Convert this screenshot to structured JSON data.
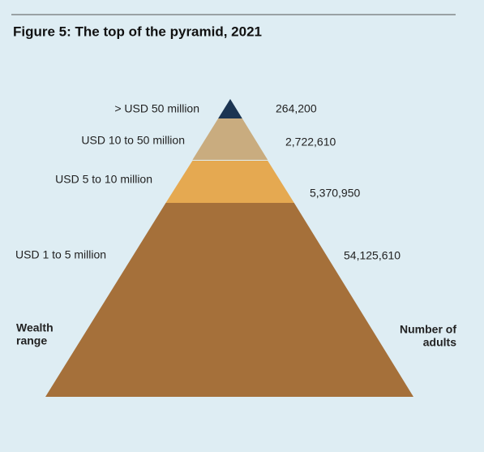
{
  "title": "Figure 5: The top of the pyramid, 2021",
  "layers": [
    {
      "range": "> USD 50 million",
      "count": "264,200"
    },
    {
      "range": "USD 10 to 50 million",
      "count": "2,722,610"
    },
    {
      "range": "USD 5 to 10 million",
      "count": "5,370,950"
    },
    {
      "range": "USD 1 to 5 million",
      "count": "54,125,610"
    }
  ],
  "left_heading": [
    "Wealth",
    "range"
  ],
  "right_heading": [
    "Number of",
    "adults"
  ]
}
